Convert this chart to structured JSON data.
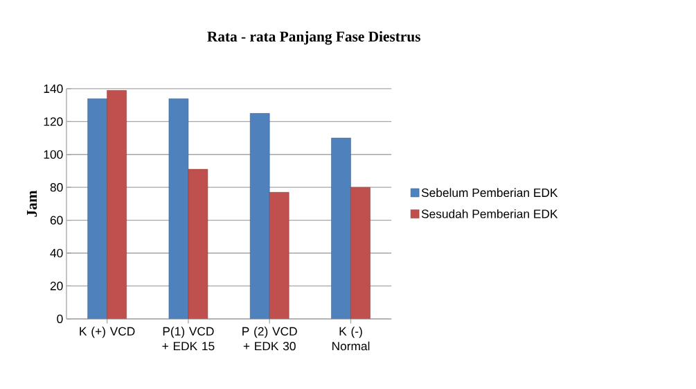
{
  "chart_data": {
    "type": "bar",
    "title": "Rata - rata Panjang Fase Diestrus",
    "ylabel": "Jam",
    "categories": [
      "K (+) VCD",
      "P(1) VCD + EDK 15",
      "P (2) VCD + EDK 30",
      "K (-) Normal"
    ],
    "series": [
      {
        "name": "Sebelum Pemberian EDK",
        "color": "#4f81bd",
        "values": [
          134,
          134,
          125,
          110
        ]
      },
      {
        "name": "Sesudah Pemberian EDK",
        "color": "#c0504d",
        "values": [
          139,
          91,
          77,
          80
        ]
      }
    ],
    "ylim": [
      0,
      140
    ],
    "yticks": [
      0,
      20,
      40,
      60,
      80,
      100,
      120,
      140
    ],
    "grid": "y",
    "legend": "right"
  }
}
